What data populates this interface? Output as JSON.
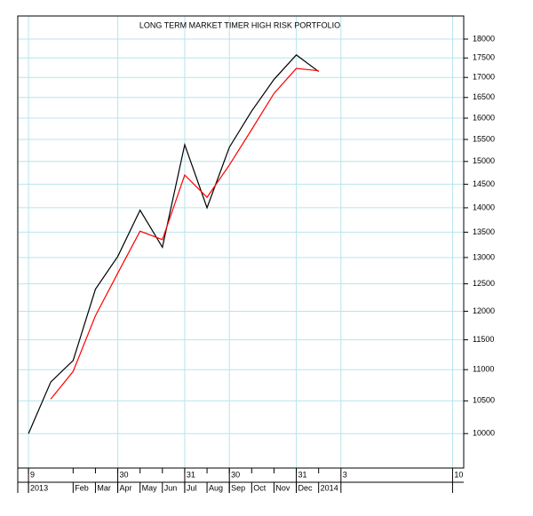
{
  "chart_data": {
    "type": "line",
    "title": "LONG TERM MARKET TIMER HIGH RISK PORTFOLIO",
    "x": [
      0,
      1,
      2,
      3,
      4,
      5,
      6,
      7,
      8,
      9,
      10,
      11,
      12,
      13
    ],
    "series": [
      {
        "color": "#000000",
        "values": [
          10000,
          10800,
          11150,
          12400,
          13020,
          13950,
          13200,
          15380,
          14000,
          15320,
          16170,
          16950,
          17580,
          17150
        ]
      },
      {
        "color": "#ff0000",
        "values": [
          null,
          10530,
          10970,
          11920,
          12700,
          13520,
          13350,
          14700,
          14220,
          14920,
          15730,
          16600,
          17230,
          17170
        ]
      }
    ],
    "xlim": [
      -0.48,
      19.5
    ],
    "xticks": [
      {
        "value": 0,
        "label": "9"
      },
      {
        "value": 4,
        "label": "30"
      },
      {
        "value": 7,
        "label": "31"
      },
      {
        "value": 9,
        "label": "30"
      },
      {
        "value": 12,
        "label": "31"
      },
      {
        "value": 14,
        "label": "3"
      },
      {
        "value": 19,
        "label": "10"
      }
    ],
    "xticks_months": [
      {
        "value": 0,
        "label": "2013"
      },
      {
        "value": 2,
        "label": "Feb"
      },
      {
        "value": 3,
        "label": "Mar"
      },
      {
        "value": 4,
        "label": "Apr"
      },
      {
        "value": 5,
        "label": "May"
      },
      {
        "value": 6,
        "label": "Jun"
      },
      {
        "value": 7,
        "label": "Jul"
      },
      {
        "value": 8,
        "label": "Aug"
      },
      {
        "value": 9,
        "label": "Sep"
      },
      {
        "value": 10,
        "label": "Oct"
      },
      {
        "value": 11,
        "label": "Nov"
      },
      {
        "value": 12,
        "label": "Dec"
      },
      {
        "value": 13,
        "label": "2014"
      }
    ],
    "ylim": [
      9500,
      18630
    ],
    "yticks": [
      10000,
      10500,
      11000,
      11500,
      12000,
      12500,
      13000,
      13500,
      14000,
      14500,
      15000,
      15500,
      16000,
      16500,
      17000,
      17500,
      18000
    ],
    "log_y": true,
    "grid": true,
    "grid_color": "#b8e4ec"
  }
}
